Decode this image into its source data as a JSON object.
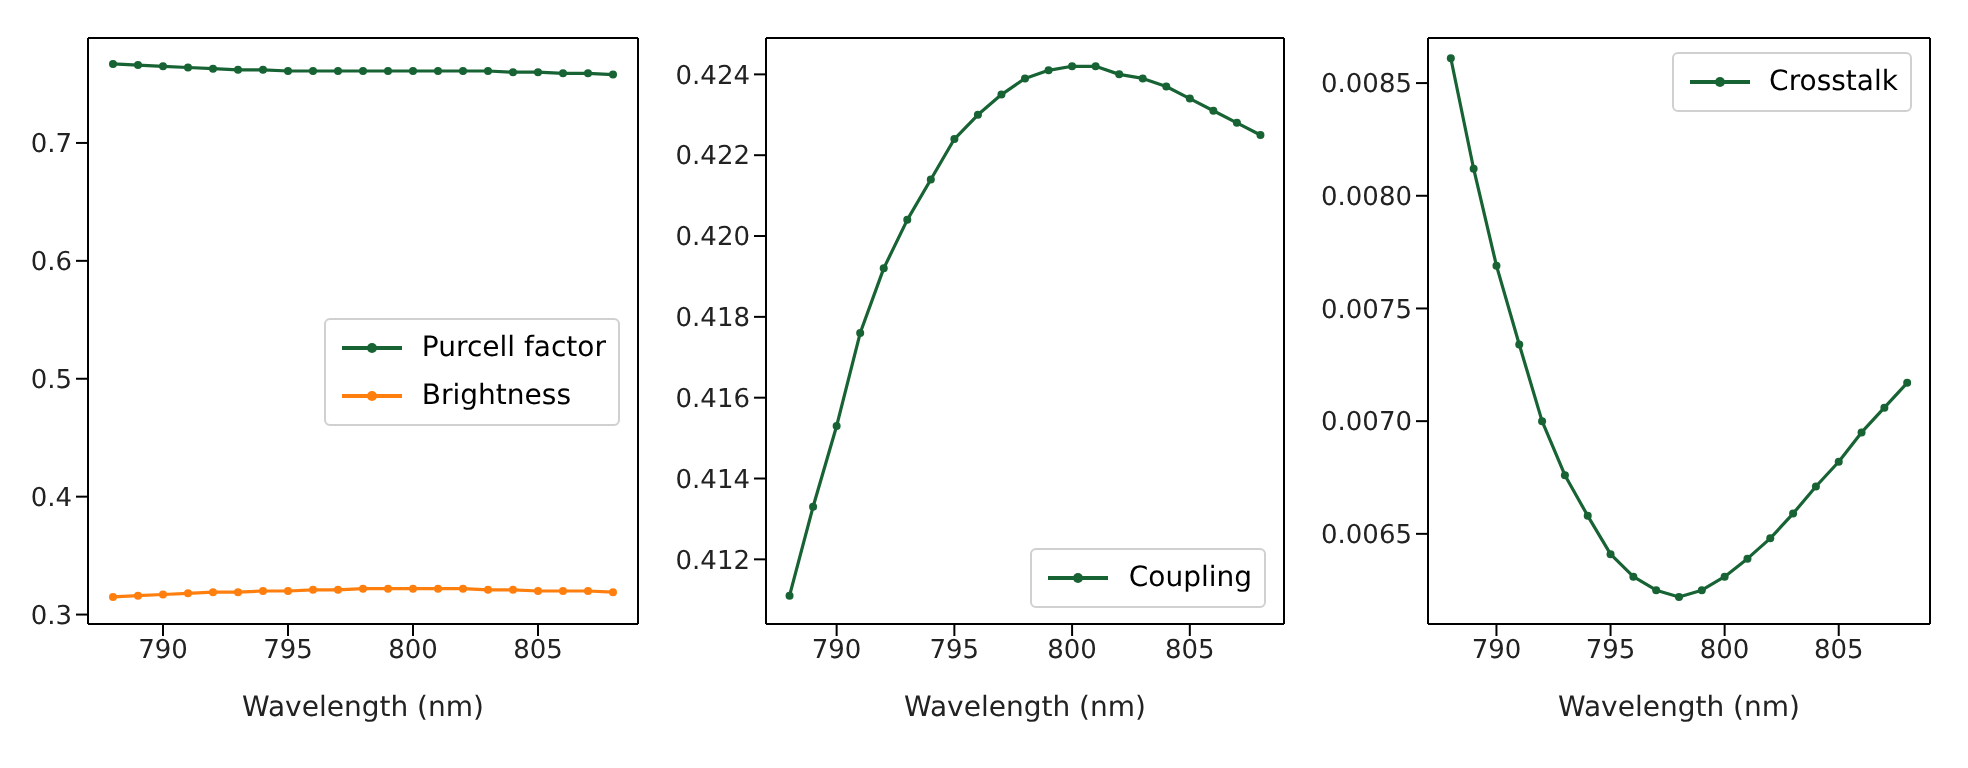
{
  "chart_data": [
    {
      "type": "line",
      "xlabel": "Wavelength (nm)",
      "xlim": [
        787,
        809
      ],
      "xticks": [
        790,
        795,
        800,
        805
      ],
      "ylim": [
        0.292,
        0.789
      ],
      "yticks": [
        0.3,
        0.4,
        0.5,
        0.6,
        0.7
      ],
      "marker": "circle",
      "legend": "right",
      "x": [
        788,
        789,
        790,
        791,
        792,
        793,
        794,
        795,
        796,
        797,
        798,
        799,
        800,
        801,
        802,
        803,
        804,
        805,
        806,
        807,
        808
      ],
      "series": [
        {
          "name": "Purcell factor",
          "color": "#176334",
          "values": [
            0.767,
            0.766,
            0.765,
            0.764,
            0.763,
            0.762,
            0.762,
            0.761,
            0.761,
            0.761,
            0.761,
            0.761,
            0.761,
            0.761,
            0.761,
            0.761,
            0.76,
            0.76,
            0.759,
            0.759,
            0.758
          ]
        },
        {
          "name": "Brightness",
          "color": "#ff7f0e",
          "values": [
            0.315,
            0.316,
            0.317,
            0.318,
            0.319,
            0.319,
            0.32,
            0.32,
            0.321,
            0.321,
            0.322,
            0.322,
            0.322,
            0.322,
            0.322,
            0.321,
            0.321,
            0.32,
            0.32,
            0.32,
            0.319
          ]
        }
      ]
    },
    {
      "type": "line",
      "xlabel": "Wavelength (nm)",
      "xlim": [
        787,
        809
      ],
      "xticks": [
        790,
        795,
        800,
        805
      ],
      "ylim": [
        0.4104,
        0.4249
      ],
      "yticks": [
        0.412,
        0.414,
        0.416,
        0.418,
        {
          "value": 0.42,
          "label": "0.420"
        },
        0.422,
        0.424
      ],
      "marker": "circle",
      "legend": "bottom right",
      "x": [
        788,
        789,
        790,
        791,
        792,
        793,
        794,
        795,
        796,
        797,
        798,
        799,
        800,
        801,
        802,
        803,
        804,
        805,
        806,
        807,
        808
      ],
      "series": [
        {
          "name": "Coupling",
          "color": "#176334",
          "values": [
            0.4111,
            0.4133,
            0.4153,
            0.4176,
            0.4192,
            0.4204,
            0.4214,
            0.4224,
            0.423,
            0.4235,
            0.4239,
            0.4241,
            0.4242,
            0.4242,
            0.424,
            0.4239,
            0.4237,
            0.4234,
            0.4231,
            0.4228,
            0.4225
          ]
        }
      ]
    },
    {
      "type": "line",
      "xlabel": "Wavelength (nm)",
      "xlim": [
        787,
        809
      ],
      "xticks": [
        790,
        795,
        800,
        805
      ],
      "ylim": [
        0.0061,
        0.0087
      ],
      "yticks": [
        {
          "value": 0.0065,
          "label": "0.0065"
        },
        {
          "value": 0.007,
          "label": "0.0070"
        },
        {
          "value": 0.0075,
          "label": "0.0075"
        },
        {
          "value": 0.008,
          "label": "0.0080"
        },
        {
          "value": 0.0085,
          "label": "0.0085"
        }
      ],
      "marker": "circle",
      "legend": "top right",
      "x": [
        788,
        789,
        790,
        791,
        792,
        793,
        794,
        795,
        796,
        797,
        798,
        799,
        800,
        801,
        802,
        803,
        804,
        805,
        806,
        807,
        808
      ],
      "series": [
        {
          "name": "Crosstalk",
          "color": "#176334",
          "values": [
            0.00861,
            0.00812,
            0.00769,
            0.00734,
            0.007,
            0.00676,
            0.00658,
            0.00641,
            0.00631,
            0.00625,
            0.00622,
            0.00625,
            0.00631,
            0.00639,
            0.00648,
            0.00659,
            0.00671,
            0.00682,
            0.00695,
            0.00706,
            0.00717
          ]
        }
      ]
    }
  ]
}
